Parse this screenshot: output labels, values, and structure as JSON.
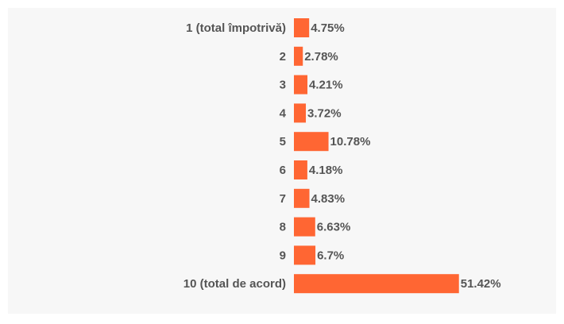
{
  "chart_data": {
    "type": "bar",
    "orientation": "horizontal",
    "categories": [
      "1 (total împotrivă)",
      "2",
      "3",
      "4",
      "5",
      "6",
      "7",
      "8",
      "9",
      "10 (total de acord)"
    ],
    "values": [
      4.75,
      2.78,
      4.21,
      3.72,
      10.78,
      4.18,
      4.83,
      6.63,
      6.7,
      51.42
    ],
    "value_labels": [
      "4.75%",
      "2.78%",
      "4.21%",
      "3.72%",
      "10.78%",
      "4.18%",
      "4.83%",
      "6.63%",
      "6.7%",
      "51.42%"
    ],
    "unit": "%",
    "bar_color": "#ff6633",
    "text_color": "#555555",
    "background_color": "#f7f7f7",
    "grid": false,
    "legend": "none"
  }
}
